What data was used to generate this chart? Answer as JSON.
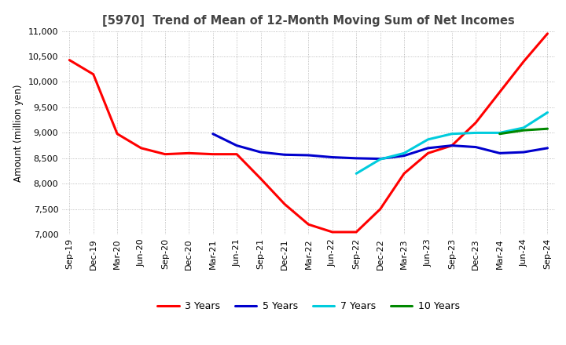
{
  "title": "[5970]  Trend of Mean of 12-Month Moving Sum of Net Incomes",
  "ylabel": "Amount (million yen)",
  "ylim": [
    7000,
    11000
  ],
  "yticks": [
    7000,
    7500,
    8000,
    8500,
    9000,
    9500,
    10000,
    10500,
    11000
  ],
  "legend_labels": [
    "3 Years",
    "5 Years",
    "7 Years",
    "10 Years"
  ],
  "legend_colors": [
    "#ff0000",
    "#0000cd",
    "#00ccdd",
    "#008800"
  ],
  "x_labels": [
    "Sep-19",
    "Dec-19",
    "Mar-20",
    "Jun-20",
    "Sep-20",
    "Dec-20",
    "Mar-21",
    "Jun-21",
    "Sep-21",
    "Dec-21",
    "Mar-22",
    "Jun-22",
    "Sep-22",
    "Dec-22",
    "Mar-23",
    "Jun-23",
    "Sep-23",
    "Dec-23",
    "Mar-24",
    "Jun-24",
    "Sep-24"
  ],
  "series_3y": [
    10430,
    10150,
    8980,
    8700,
    8580,
    8600,
    8580,
    8580,
    8100,
    7600,
    7200,
    7050,
    7050,
    7500,
    8200,
    8600,
    8750,
    9200,
    9800,
    10400,
    10950
  ],
  "series_5y": [
    null,
    null,
    null,
    null,
    null,
    null,
    8980,
    8750,
    8620,
    8570,
    8560,
    8520,
    8500,
    8490,
    8550,
    8700,
    8750,
    8720,
    8600,
    8620,
    8700
  ],
  "series_7y": [
    null,
    null,
    null,
    null,
    null,
    null,
    null,
    null,
    null,
    null,
    null,
    null,
    8200,
    8480,
    8600,
    8870,
    8980,
    9000,
    9000,
    9100,
    9400
  ],
  "series_10y": [
    null,
    null,
    null,
    null,
    null,
    null,
    null,
    null,
    null,
    null,
    null,
    null,
    null,
    null,
    null,
    null,
    null,
    null,
    8980,
    9050,
    9080
  ],
  "background_color": "#ffffff",
  "grid_color": "#aaaaaa"
}
